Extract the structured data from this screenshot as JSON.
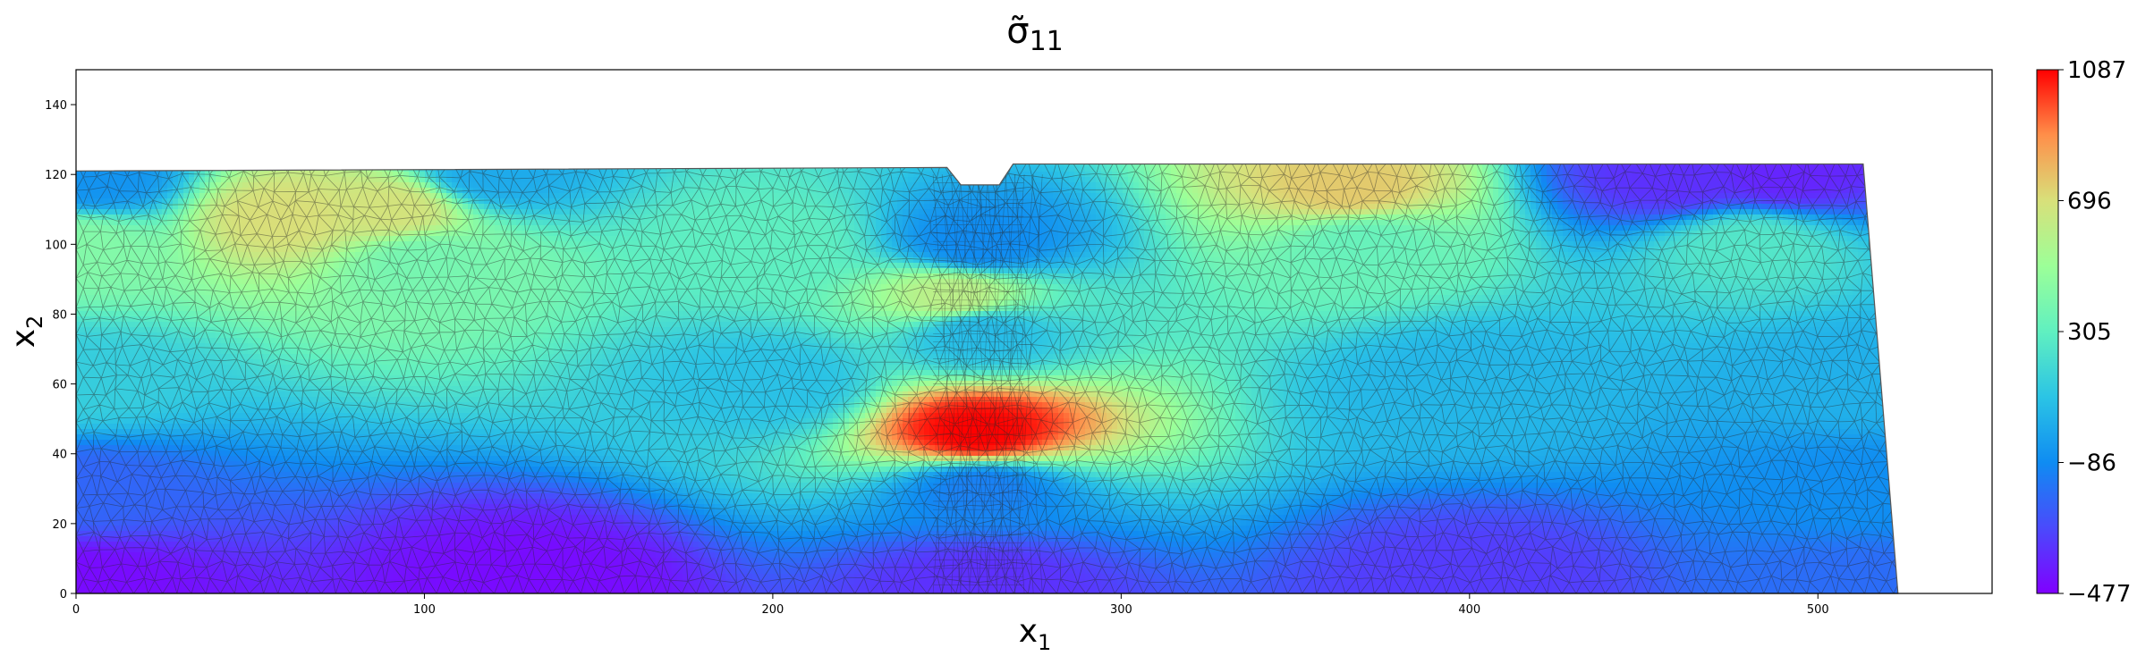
{
  "chart_data": {
    "type": "heatmap",
    "title": "σ̃",
    "title_subscript": "11",
    "xlabel": "x",
    "xlabel_subscript": "1",
    "ylabel": "x",
    "ylabel_subscript": "2",
    "xlim": [
      0,
      550
    ],
    "ylim": [
      0,
      150
    ],
    "x_ticks": [
      0,
      100,
      200,
      300,
      400,
      500
    ],
    "y_ticks": [
      0,
      20,
      40,
      60,
      80,
      100,
      120,
      140
    ],
    "colorbar": {
      "min": -477,
      "max": 1087,
      "ticks": [
        1087,
        696,
        305,
        -86,
        -477
      ],
      "colormap": "rainbow"
    },
    "mesh": "triangular finite-element mesh overlay",
    "domain_outline": [
      [
        0,
        121
      ],
      [
        250,
        122
      ],
      [
        254,
        117
      ],
      [
        265,
        117
      ],
      [
        269,
        123
      ],
      [
        513,
        123
      ],
      [
        523,
        0
      ],
      [
        0,
        0
      ]
    ],
    "field_samples": [
      {
        "x": 0,
        "y": 2,
        "value": -450
      },
      {
        "x": 130,
        "y": 2,
        "value": -450
      },
      {
        "x": 260,
        "y": 2,
        "value": -350
      },
      {
        "x": 400,
        "y": 2,
        "value": -320
      },
      {
        "x": 515,
        "y": 2,
        "value": -180
      },
      {
        "x": 0,
        "y": 30,
        "value": -200
      },
      {
        "x": 260,
        "y": 30,
        "value": -120
      },
      {
        "x": 515,
        "y": 30,
        "value": -80
      },
      {
        "x": 0,
        "y": 60,
        "value": 150
      },
      {
        "x": 200,
        "y": 60,
        "value": 100
      },
      {
        "x": 400,
        "y": 60,
        "value": 60
      },
      {
        "x": 515,
        "y": 60,
        "value": 40
      },
      {
        "x": 0,
        "y": 100,
        "value": 420
      },
      {
        "x": 100,
        "y": 95,
        "value": 380
      },
      {
        "x": 200,
        "y": 100,
        "value": 300
      },
      {
        "x": 370,
        "y": 100,
        "value": 330
      },
      {
        "x": 480,
        "y": 100,
        "value": 260
      },
      {
        "x": 60,
        "y": 108,
        "value": 700
      },
      {
        "x": 90,
        "y": 110,
        "value": 680
      },
      {
        "x": 365,
        "y": 116,
        "value": 750
      },
      {
        "x": 5,
        "y": 118,
        "value": -60
      },
      {
        "x": 120,
        "y": 120,
        "value": 20
      },
      {
        "x": 460,
        "y": 119,
        "value": -350
      },
      {
        "x": 490,
        "y": 120,
        "value": -380
      },
      {
        "x": 259,
        "y": 100,
        "value": -90
      },
      {
        "x": 259,
        "y": 75,
        "value": 80
      },
      {
        "x": 259,
        "y": 46,
        "value": 1087
      },
      {
        "x": 252,
        "y": 85,
        "value": 600
      }
    ]
  }
}
